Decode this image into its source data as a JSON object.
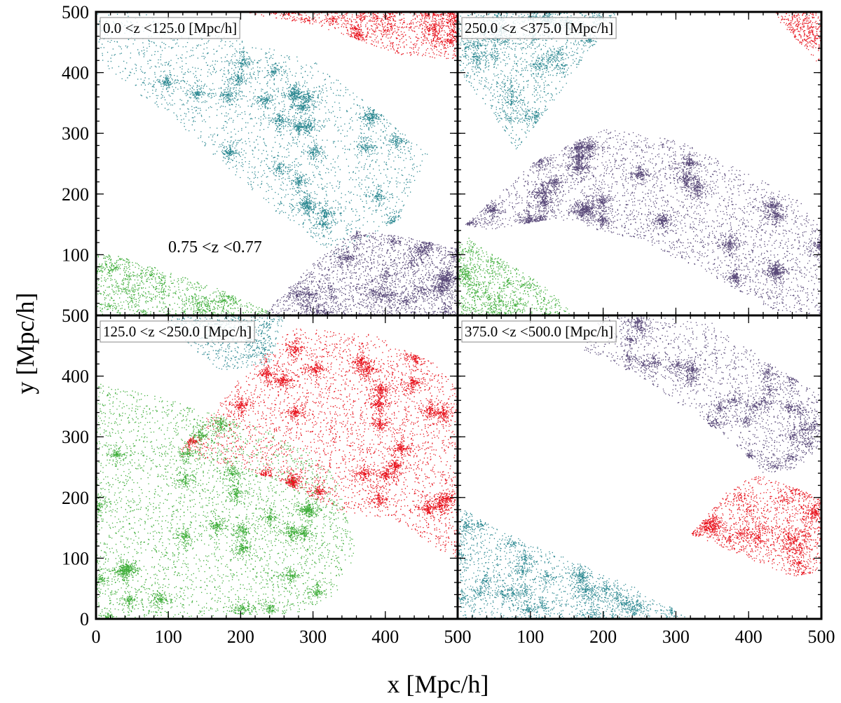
{
  "chart_data": {
    "type": "scatter",
    "xlabel": "x  [Mpc/h]",
    "ylabel": "y  [Mpc/h]",
    "xlim": [
      0,
      500
    ],
    "ylim": [
      0,
      500
    ],
    "x_ticks": [
      0,
      100,
      200,
      300,
      400,
      500
    ],
    "y_ticks": [
      0,
      100,
      200,
      300,
      400,
      500
    ],
    "colors": {
      "teal": "#2f8a93",
      "red": "#e8121c",
      "purple": "#5a4a7a",
      "green": "#3fae3a"
    },
    "annotation": "0.75 <z <0.77",
    "panels": [
      {
        "label": "0.0 <z <125.0 [Mpc/h]",
        "regions": [
          {
            "color": "teal",
            "polygon": [
              [
                0,
                500
              ],
              [
                60,
                500
              ],
              [
                120,
                480
              ],
              [
                300,
                420
              ],
              [
                460,
                270
              ],
              [
                420,
                160
              ],
              [
                330,
                100
              ],
              [
                250,
                170
              ],
              [
                130,
                300
              ],
              [
                0,
                420
              ]
            ],
            "count": 5200
          },
          {
            "color": "red",
            "polygon": [
              [
                200,
                500
              ],
              [
                500,
                500
              ],
              [
                500,
                420
              ],
              [
                420,
                430
              ],
              [
                300,
                480
              ]
            ],
            "count": 1500
          },
          {
            "color": "purple",
            "polygon": [
              [
                230,
                0
              ],
              [
                300,
                90
              ],
              [
                360,
                140
              ],
              [
                430,
                130
              ],
              [
                500,
                110
              ],
              [
                500,
                0
              ]
            ],
            "count": 3600
          },
          {
            "color": "green",
            "polygon": [
              [
                0,
                110
              ],
              [
                80,
                80
              ],
              [
                180,
                40
              ],
              [
                250,
                0
              ],
              [
                0,
                0
              ]
            ],
            "count": 1300
          }
        ]
      },
      {
        "label": "250.0 <z <375.0 [Mpc/h]",
        "regions": [
          {
            "color": "teal",
            "polygon": [
              [
                0,
                500
              ],
              [
                220,
                500
              ],
              [
                160,
                400
              ],
              [
                110,
                320
              ],
              [
                80,
                270
              ],
              [
                50,
                330
              ],
              [
                0,
                400
              ]
            ],
            "count": 2300
          },
          {
            "color": "red",
            "polygon": [
              [
                430,
                500
              ],
              [
                500,
                500
              ],
              [
                500,
                410
              ]
            ],
            "count": 350
          },
          {
            "color": "purple",
            "polygon": [
              [
                10,
                150
              ],
              [
                100,
                250
              ],
              [
                200,
                310
              ],
              [
                300,
                290
              ],
              [
                390,
                240
              ],
              [
                470,
                190
              ],
              [
                500,
                140
              ],
              [
                500,
                0
              ],
              [
                430,
                10
              ],
              [
                330,
                80
              ],
              [
                230,
                130
              ],
              [
                130,
                160
              ],
              [
                40,
                140
              ]
            ],
            "count": 6800
          },
          {
            "color": "green",
            "polygon": [
              [
                0,
                140
              ],
              [
                50,
                100
              ],
              [
                120,
                50
              ],
              [
                160,
                0
              ],
              [
                0,
                0
              ]
            ],
            "count": 1200
          }
        ]
      },
      {
        "label": "125.0 <z <250.0 [Mpc/h]",
        "regions": [
          {
            "color": "teal",
            "polygon": [
              [
                100,
                500
              ],
              [
                260,
                500
              ],
              [
                240,
                420
              ],
              [
                170,
                410
              ],
              [
                120,
                460
              ]
            ],
            "count": 700
          },
          {
            "color": "red",
            "polygon": [
              [
                110,
                270
              ],
              [
                200,
                400
              ],
              [
                270,
                480
              ],
              [
                380,
                470
              ],
              [
                470,
                420
              ],
              [
                500,
                380
              ],
              [
                500,
                100
              ],
              [
                480,
                110
              ],
              [
                420,
                160
              ],
              [
                330,
                180
              ],
              [
                250,
                230
              ],
              [
                160,
                260
              ]
            ],
            "count": 6500
          },
          {
            "color": "green",
            "polygon": [
              [
                0,
                390
              ],
              [
                80,
                370
              ],
              [
                160,
                340
              ],
              [
                240,
                310
              ],
              [
                290,
                280
              ],
              [
                330,
                240
              ],
              [
                360,
                110
              ],
              [
                330,
                40
              ],
              [
                280,
                10
              ],
              [
                0,
                0
              ]
            ],
            "count": 6200
          }
        ]
      },
      {
        "label": "375.0 <z <500.0 [Mpc/h]",
        "regions": [
          {
            "color": "purple",
            "polygon": [
              [
                240,
                500
              ],
              [
                350,
                490
              ],
              [
                430,
                420
              ],
              [
                500,
                370
              ],
              [
                500,
                290
              ],
              [
                470,
                250
              ],
              [
                420,
                240
              ],
              [
                380,
                290
              ],
              [
                310,
                350
              ],
              [
                250,
                400
              ],
              [
                160,
                450
              ],
              [
                200,
                500
              ]
            ],
            "count": 3300
          },
          {
            "color": "red",
            "polygon": [
              [
                320,
                140
              ],
              [
                370,
                210
              ],
              [
                410,
                240
              ],
              [
                500,
                200
              ],
              [
                500,
                80
              ],
              [
                460,
                70
              ],
              [
                400,
                100
              ]
            ],
            "count": 2200
          },
          {
            "color": "teal",
            "polygon": [
              [
                0,
                190
              ],
              [
                50,
                150
              ],
              [
                150,
                100
              ],
              [
                250,
                50
              ],
              [
                320,
                0
              ],
              [
                0,
                0
              ]
            ],
            "count": 2700
          }
        ]
      }
    ]
  }
}
